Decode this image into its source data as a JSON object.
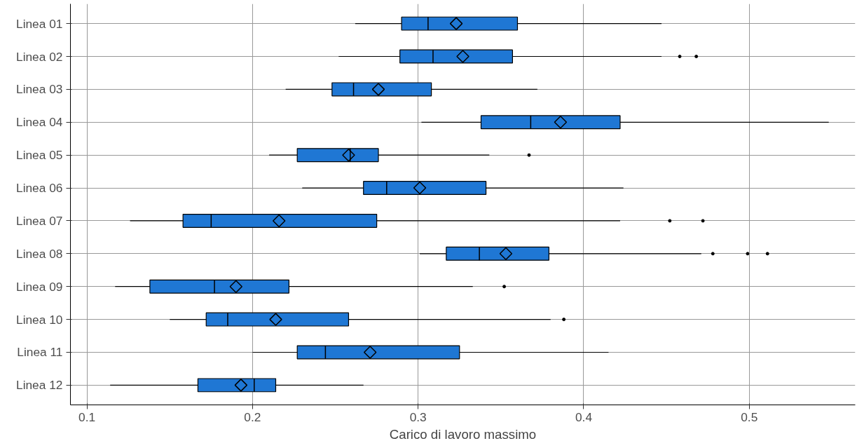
{
  "chart_data": {
    "type": "box",
    "orientation": "horizontal",
    "xlabel": "Carico di lavoro massimo",
    "categories": [
      "Linea 01",
      "Linea 02",
      "Linea 03",
      "Linea 04",
      "Linea 05",
      "Linea 06",
      "Linea 07",
      "Linea 08",
      "Linea 09",
      "Linea 10",
      "Linea 11",
      "Linea 12"
    ],
    "color": "#1f77d4",
    "boxes": [
      {
        "low": 0.262,
        "q1": 0.29,
        "median": 0.306,
        "q3": 0.36,
        "high": 0.447,
        "mean": 0.323
      },
      {
        "low": 0.252,
        "q1": 0.289,
        "median": 0.309,
        "q3": 0.357,
        "high": 0.447,
        "mean": 0.327,
        "outliers": [
          0.458,
          0.468
        ]
      },
      {
        "low": 0.22,
        "q1": 0.248,
        "median": 0.261,
        "q3": 0.308,
        "high": 0.372,
        "mean": 0.276
      },
      {
        "low": 0.302,
        "q1": 0.338,
        "median": 0.368,
        "q3": 0.422,
        "high": 0.548,
        "mean": 0.386
      },
      {
        "low": 0.21,
        "q1": 0.227,
        "median": 0.259,
        "q3": 0.276,
        "high": 0.343,
        "mean": 0.258,
        "outliers": [
          0.367
        ]
      },
      {
        "low": 0.23,
        "q1": 0.267,
        "median": 0.281,
        "q3": 0.341,
        "high": 0.424,
        "mean": 0.301
      },
      {
        "low": 0.126,
        "q1": 0.158,
        "median": 0.175,
        "q3": 0.275,
        "high": 0.422,
        "mean": 0.216,
        "outliers": [
          0.452,
          0.472
        ]
      },
      {
        "low": 0.301,
        "q1": 0.317,
        "median": 0.337,
        "q3": 0.379,
        "high": 0.471,
        "mean": 0.353,
        "outliers": [
          0.478,
          0.499,
          0.511
        ]
      },
      {
        "low": 0.117,
        "q1": 0.138,
        "median": 0.177,
        "q3": 0.222,
        "high": 0.333,
        "mean": 0.19,
        "outliers": [
          0.352
        ]
      },
      {
        "low": 0.15,
        "q1": 0.172,
        "median": 0.185,
        "q3": 0.258,
        "high": 0.38,
        "mean": 0.214,
        "outliers": [
          0.388
        ]
      },
      {
        "low": 0.2,
        "q1": 0.227,
        "median": 0.244,
        "q3": 0.325,
        "high": 0.415,
        "mean": 0.271
      },
      {
        "low": 0.114,
        "q1": 0.167,
        "median": 0.201,
        "q3": 0.214,
        "high": 0.267,
        "mean": 0.193
      }
    ],
    "xlim": [
      0.09,
      0.564
    ],
    "xticks": [
      0.1,
      0.2,
      0.3,
      0.4,
      0.5
    ],
    "grid": true
  }
}
